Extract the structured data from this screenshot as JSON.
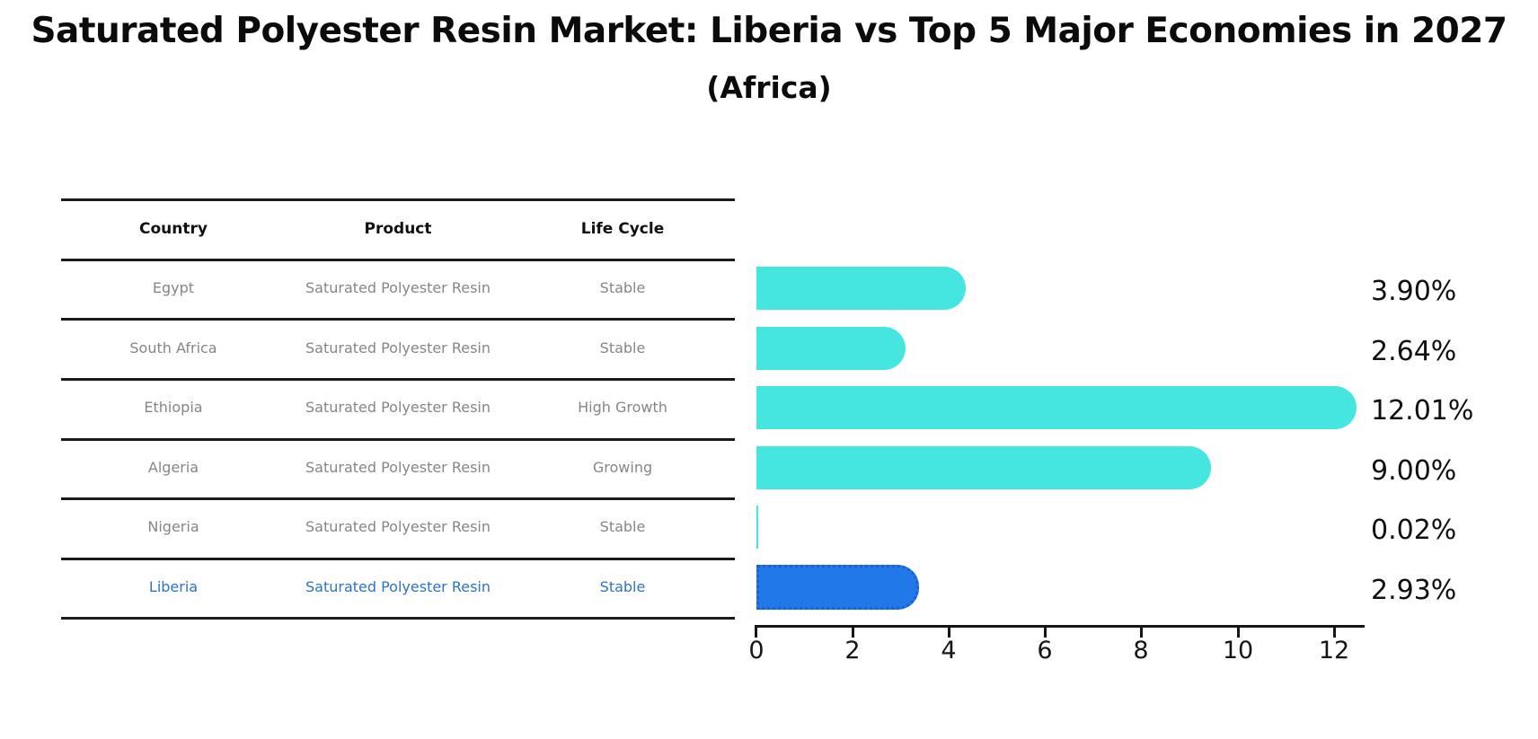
{
  "title": "Saturated Polyester Resin Market: Liberia vs Top 5 Major Economies in 2027",
  "subtitle": "(Africa)",
  "table": {
    "headers": [
      "Country",
      "Product",
      "Life Cycle"
    ],
    "rows": [
      {
        "country": "Egypt",
        "product": "Saturated Polyester Resin",
        "life_cycle": "Stable"
      },
      {
        "country": "South Africa",
        "product": "Saturated Polyester Resin",
        "life_cycle": "Stable"
      },
      {
        "country": "Ethiopia",
        "product": "Saturated Polyester Resin",
        "life_cycle": "High Growth"
      },
      {
        "country": "Algeria",
        "product": "Saturated Polyester Resin",
        "life_cycle": "Growing"
      },
      {
        "country": "Nigeria",
        "product": "Saturated Polyester Resin",
        "life_cycle": "Stable"
      },
      {
        "country": "Liberia",
        "product": "Saturated Polyester Resin",
        "life_cycle": "Stable"
      }
    ]
  },
  "chart_data": {
    "type": "bar",
    "orientation": "horizontal",
    "title": "Saturated Polyester Resin Market: Liberia vs Top 5 Major Economies in 2027 (Africa)",
    "categories": [
      "Egypt",
      "South Africa",
      "Ethiopia",
      "Algeria",
      "Nigeria",
      "Liberia"
    ],
    "values": [
      3.9,
      2.64,
      12.01,
      9.0,
      0.02,
      2.93
    ],
    "value_labels": [
      "3.90%",
      "2.64%",
      "12.01%",
      "9.00%",
      "0.02%",
      "2.93%"
    ],
    "xticks": [
      "0",
      "2",
      "4",
      "6",
      "8",
      "10",
      "12"
    ],
    "xlim": [
      0,
      12.6
    ],
    "grid": false,
    "legend": "none",
    "bar_color": "#46e6e0",
    "highlight_index": 5,
    "highlight_color": "#2178e8",
    "highlight_border_color": "#1c5fd0",
    "highlight_text_color": "#2e74c4"
  }
}
